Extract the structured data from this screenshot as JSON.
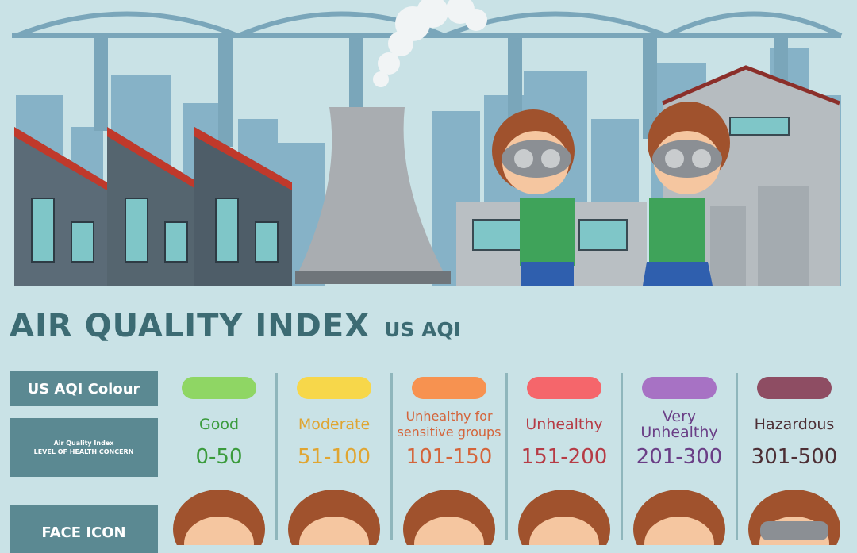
{
  "title": "AIR QUALITY INDEX",
  "subtitle": "US AQI",
  "row_labels": {
    "colour": "US AQI Colour",
    "concern_line1": "Air Quality Index",
    "concern_line2": "LEVEL OF HEALTH CONCERN",
    "face": "FACE ICON"
  },
  "levels": [
    {
      "name": "Good",
      "range": "0-50",
      "color": "#8fd664",
      "text_color": "#3a9b3c"
    },
    {
      "name": "Moderate",
      "range": "51-100",
      "color": "#f7d74a",
      "text_color": "#e0a531"
    },
    {
      "name": "Unhealthy for sensitive groups",
      "range": "101-150",
      "color": "#f79250",
      "text_color": "#d4643a"
    },
    {
      "name": "Unhealthy",
      "range": "151-200",
      "color": "#f5666b",
      "text_color": "#b63b45"
    },
    {
      "name": "Very Unhealthy",
      "range": "201-300",
      "color": "#a772c4",
      "text_color": "#6a3e86"
    },
    {
      "name": "Hazardous",
      "range": "301-500",
      "color": "#8e4d63",
      "text_color": "#4d2f35"
    }
  ],
  "icons": {
    "face": "child-face-icon",
    "mask": "gas-mask-icon"
  }
}
